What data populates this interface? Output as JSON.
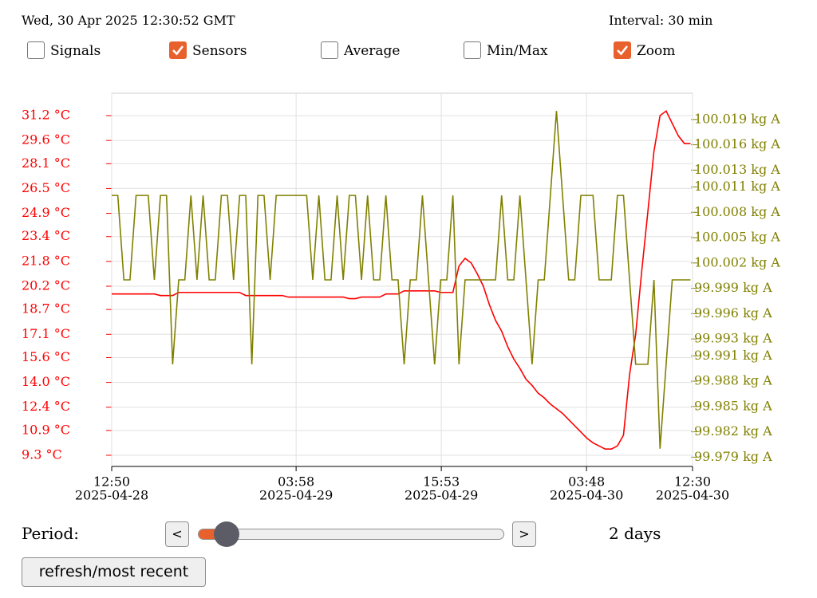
{
  "header": {
    "datetime": "Wed, 30 Apr 2025 12:30:52 GMT",
    "interval": "Interval: 30 min"
  },
  "options": [
    {
      "label": "Signals",
      "checked": false
    },
    {
      "label": "Sensors",
      "checked": true
    },
    {
      "label": "Average",
      "checked": false
    },
    {
      "label": "Min/Max",
      "checked": false
    },
    {
      "label": "Zoom",
      "checked": true
    }
  ],
  "chart_data": {
    "type": "line",
    "x": [
      "2025-04-28 12:50",
      "2025-04-28 13:20",
      "2025-04-28 13:50",
      "2025-04-28 14:20",
      "2025-04-28 14:50",
      "2025-04-28 15:20",
      "2025-04-28 15:50",
      "2025-04-28 16:20",
      "2025-04-28 16:50",
      "2025-04-28 17:20",
      "2025-04-28 17:50",
      "2025-04-28 18:20",
      "2025-04-28 18:50",
      "2025-04-28 19:20",
      "2025-04-28 19:50",
      "2025-04-28 20:20",
      "2025-04-28 20:50",
      "2025-04-28 21:20",
      "2025-04-28 21:50",
      "2025-04-28 22:20",
      "2025-04-28 22:50",
      "2025-04-28 23:20",
      "2025-04-28 23:50",
      "2025-04-29 00:20",
      "2025-04-29 00:50",
      "2025-04-29 01:20",
      "2025-04-29 01:50",
      "2025-04-29 02:20",
      "2025-04-29 02:50",
      "2025-04-29 03:20",
      "2025-04-29 03:50",
      "2025-04-29 04:20",
      "2025-04-29 04:50",
      "2025-04-29 05:20",
      "2025-04-29 05:50",
      "2025-04-29 06:20",
      "2025-04-29 06:50",
      "2025-04-29 07:20",
      "2025-04-29 07:50",
      "2025-04-29 08:20",
      "2025-04-29 08:50",
      "2025-04-29 09:20",
      "2025-04-29 09:50",
      "2025-04-29 10:20",
      "2025-04-29 10:50",
      "2025-04-29 11:20",
      "2025-04-29 11:50",
      "2025-04-29 12:20",
      "2025-04-29 12:50",
      "2025-04-29 13:20",
      "2025-04-29 13:50",
      "2025-04-29 14:20",
      "2025-04-29 14:50",
      "2025-04-29 15:20",
      "2025-04-29 15:50",
      "2025-04-29 16:20",
      "2025-04-29 16:50",
      "2025-04-29 17:20",
      "2025-04-29 17:50",
      "2025-04-29 18:20",
      "2025-04-29 18:50",
      "2025-04-29 19:20",
      "2025-04-29 19:50",
      "2025-04-29 20:20",
      "2025-04-29 20:50",
      "2025-04-29 21:20",
      "2025-04-29 21:50",
      "2025-04-29 22:20",
      "2025-04-29 22:50",
      "2025-04-29 23:20",
      "2025-04-29 23:50",
      "2025-04-30 00:20",
      "2025-04-30 00:50",
      "2025-04-30 01:20",
      "2025-04-30 01:50",
      "2025-04-30 02:20",
      "2025-04-30 02:50",
      "2025-04-30 03:20",
      "2025-04-30 03:50",
      "2025-04-30 04:20",
      "2025-04-30 04:50",
      "2025-04-30 05:20",
      "2025-04-30 05:50",
      "2025-04-30 06:20",
      "2025-04-30 06:50",
      "2025-04-30 07:20",
      "2025-04-30 07:50",
      "2025-04-30 08:20",
      "2025-04-30 08:50",
      "2025-04-30 09:20",
      "2025-04-30 09:50",
      "2025-04-30 10:20",
      "2025-04-30 10:50",
      "2025-04-30 11:20",
      "2025-04-30 11:50",
      "2025-04-30 12:20"
    ],
    "series": [
      {
        "color": "#ff0000",
        "values": [
          19.7,
          19.7,
          19.7,
          19.7,
          19.7,
          19.7,
          19.7,
          19.7,
          19.6,
          19.6,
          19.6,
          19.8,
          19.8,
          19.8,
          19.8,
          19.8,
          19.8,
          19.8,
          19.8,
          19.8,
          19.8,
          19.8,
          19.6,
          19.6,
          19.6,
          19.6,
          19.6,
          19.6,
          19.6,
          19.5,
          19.5,
          19.5,
          19.5,
          19.5,
          19.5,
          19.5,
          19.5,
          19.5,
          19.5,
          19.4,
          19.4,
          19.5,
          19.5,
          19.5,
          19.5,
          19.7,
          19.7,
          19.7,
          19.9,
          19.9,
          19.9,
          19.9,
          19.9,
          19.9,
          19.8,
          19.8,
          19.8,
          21.5,
          22.0,
          21.7,
          21.0,
          20.2,
          19.0,
          18.0,
          17.3,
          16.3,
          15.5,
          14.9,
          14.2,
          13.8,
          13.3,
          13.0,
          12.6,
          12.3,
          12.0,
          11.6,
          11.2,
          10.8,
          10.4,
          10.1,
          9.9,
          9.7,
          9.7,
          9.9,
          10.6,
          14.5,
          17.1,
          21.2,
          25.0,
          28.9,
          31.2,
          31.5,
          30.7,
          29.9,
          29.4,
          29.4
        ]
      },
      {
        "color": "#808000",
        "axis": "y2",
        "values": [
          100.01,
          100.01,
          100,
          100,
          100.01,
          100.01,
          100.01,
          100,
          100.01,
          100.01,
          99.99,
          100,
          100,
          100.01,
          100,
          100.01,
          100,
          100,
          100.01,
          100.01,
          100,
          100.01,
          100.01,
          99.99,
          100.01,
          100.01,
          100,
          100.01,
          100.01,
          100.01,
          100.01,
          100.01,
          100.01,
          100,
          100.01,
          100,
          100,
          100.01,
          100,
          100.01,
          100.01,
          100,
          100.01,
          100,
          100,
          100.01,
          100,
          100,
          99.99,
          100,
          100,
          100.01,
          100,
          99.99,
          100,
          100,
          100.01,
          99.99,
          100,
          100,
          100,
          100,
          100,
          100,
          100.01,
          100,
          100,
          100.01,
          100,
          99.99,
          100,
          100,
          100.01,
          100.02,
          100.01,
          100,
          100,
          100.01,
          100.01,
          100.01,
          100,
          100,
          100,
          100.01,
          100.01,
          100,
          99.99,
          99.99,
          99.99,
          100,
          99.98,
          99.99,
          100,
          100,
          100,
          100
        ]
      }
    ],
    "xlim": [
      "2025-04-28 12:50",
      "2025-04-30 12:30"
    ],
    "xticks": [
      {
        "value": "2025-04-28 12:50",
        "label": [
          "12:50",
          "2025-04-28"
        ]
      },
      {
        "value": "2025-04-29 03:58",
        "label": [
          "03:58",
          "2025-04-29"
        ]
      },
      {
        "value": "2025-04-29 15:53",
        "label": [
          "15:53",
          "2025-04-29"
        ]
      },
      {
        "value": "2025-04-30 03:48",
        "label": [
          "03:48",
          "2025-04-30"
        ]
      },
      {
        "value": "2025-04-30 12:30",
        "label": [
          "12:30",
          "2025-04-30"
        ]
      }
    ],
    "ylim": [
      8.58,
      32.64
    ],
    "yticks": [
      {
        "value": 31.2,
        "label": "31.2 °C"
      },
      {
        "value": 29.6,
        "label": "29.6 °C"
      },
      {
        "value": 28.1,
        "label": "28.1 °C"
      },
      {
        "value": 26.5,
        "label": "26.5 °C"
      },
      {
        "value": 24.9,
        "label": "24.9 °C"
      },
      {
        "value": 23.4,
        "label": "23.4 °C"
      },
      {
        "value": 21.8,
        "label": "21.8 °C"
      },
      {
        "value": 20.2,
        "label": "20.2 °C"
      },
      {
        "value": 18.7,
        "label": "18.7 °C"
      },
      {
        "value": 17.1,
        "label": "17.1 °C"
      },
      {
        "value": 15.6,
        "label": "15.6 °C"
      },
      {
        "value": 14.0,
        "label": "14.0 °C"
      },
      {
        "value": 12.4,
        "label": "12.4 °C"
      },
      {
        "value": 10.9,
        "label": "10.9 °C"
      },
      {
        "value": 9.3,
        "label": "9.3 °C"
      }
    ],
    "y2lim": [
      99.9779,
      100.0221
    ],
    "y2ticks": [
      {
        "value": 100.019,
        "label": "100.019 kg A"
      },
      {
        "value": 100.016,
        "label": "100.016 kg A"
      },
      {
        "value": 100.013,
        "label": "100.013 kg A"
      },
      {
        "value": 100.011,
        "label": "100.011 kg A"
      },
      {
        "value": 100.008,
        "label": "100.008 kg A"
      },
      {
        "value": 100.005,
        "label": "100.005 kg A"
      },
      {
        "value": 100.002,
        "label": "100.002 kg A"
      },
      {
        "value": 99.999,
        "label": "99.999 kg A"
      },
      {
        "value": 99.996,
        "label": "99.996 kg A"
      },
      {
        "value": 99.993,
        "label": "99.993 kg A"
      },
      {
        "value": 99.991,
        "label": "99.991 kg A"
      },
      {
        "value": 99.988,
        "label": "99.988 kg A"
      },
      {
        "value": 99.985,
        "label": "99.985 kg A"
      },
      {
        "value": 99.982,
        "label": "99.982 kg A"
      },
      {
        "value": 99.979,
        "label": "99.979 kg A"
      }
    ],
    "grid": true
  },
  "period": {
    "label": "Period:",
    "prev": "<",
    "next": ">",
    "value": "2 days"
  },
  "refresh": "refresh/most recent"
}
